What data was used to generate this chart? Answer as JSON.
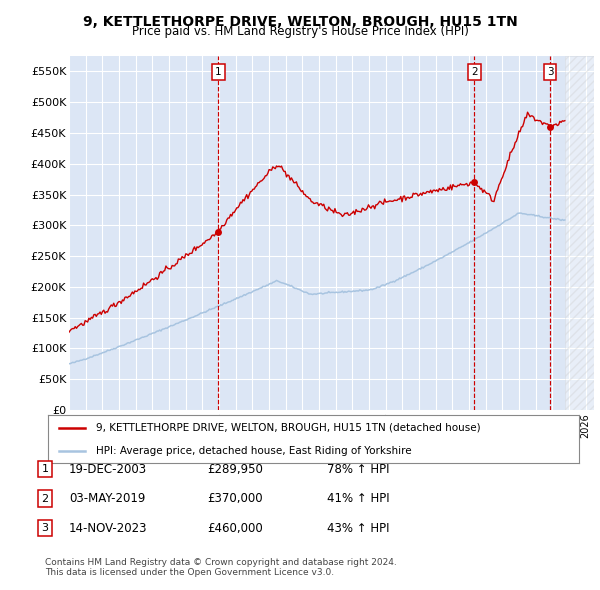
{
  "title": "9, KETTLETHORPE DRIVE, WELTON, BROUGH, HU15 1TN",
  "subtitle": "Price paid vs. HM Land Registry's House Price Index (HPI)",
  "ylim": [
    0,
    575000
  ],
  "yticks": [
    0,
    50000,
    100000,
    150000,
    200000,
    250000,
    300000,
    350000,
    400000,
    450000,
    500000,
    550000
  ],
  "xlim_start": 1995.0,
  "xlim_end": 2026.5,
  "background_color": "#ffffff",
  "plot_bg_color": "#dce6f5",
  "grid_color": "#ffffff",
  "hpi_line_color": "#a8c4e0",
  "price_line_color": "#cc0000",
  "sale_marker_color": "#cc0000",
  "vline_color": "#cc0000",
  "legend_label_price": "9, KETTLETHORPE DRIVE, WELTON, BROUGH, HU15 1TN (detached house)",
  "legend_label_hpi": "HPI: Average price, detached house, East Riding of Yorkshire",
  "sales": [
    {
      "label": "1",
      "date_year": 2003.97,
      "price": 289950,
      "pct": "78%",
      "date_str": "19-DEC-2003"
    },
    {
      "label": "2",
      "date_year": 2019.33,
      "price": 370000,
      "pct": "41%",
      "date_str": "03-MAY-2019"
    },
    {
      "label": "3",
      "date_year": 2023.87,
      "price": 460000,
      "pct": "43%",
      "date_str": "14-NOV-2023"
    }
  ],
  "footer": "Contains HM Land Registry data © Crown copyright and database right 2024.\nThis data is licensed under the Open Government Licence v3.0.",
  "hatched_region_start": 2024.75,
  "hatched_region_end": 2026.5
}
